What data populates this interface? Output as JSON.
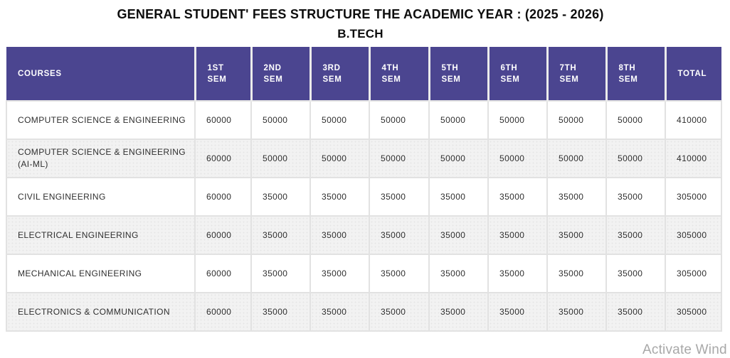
{
  "title": {
    "line1": "GENERAL STUDENT' FEES STRUCTURE THE ACADEMIC YEAR : (2025 - 2026)",
    "line2": "B.TECH"
  },
  "table": {
    "headers": [
      "COURSES",
      "1ST\nSEM",
      "2ND\nSEM",
      "3RD\nSEM",
      "4TH\nSEM",
      "5TH\nSEM",
      "6TH\nSEM",
      "7TH\nSEM",
      "8TH\nSEM",
      "TOTAL"
    ],
    "rows": [
      {
        "course": "COMPUTER SCIENCE & ENGINEERING",
        "sem_fees": [
          "60000",
          "50000",
          "50000",
          "50000",
          "50000",
          "50000",
          "50000",
          "50000"
        ],
        "total": "410000"
      },
      {
        "course": "COMPUTER SCIENCE & ENGINEERING (AI-ML)",
        "sem_fees": [
          "60000",
          "50000",
          "50000",
          "50000",
          "50000",
          "50000",
          "50000",
          "50000"
        ],
        "total": "410000"
      },
      {
        "course": "CIVIL ENGINEERING",
        "sem_fees": [
          "60000",
          "35000",
          "35000",
          "35000",
          "35000",
          "35000",
          "35000",
          "35000"
        ],
        "total": "305000"
      },
      {
        "course": "ELECTRICAL ENGINEERING",
        "sem_fees": [
          "60000",
          "35000",
          "35000",
          "35000",
          "35000",
          "35000",
          "35000",
          "35000"
        ],
        "total": "305000"
      },
      {
        "course": "MECHANICAL ENGINEERING",
        "sem_fees": [
          "60000",
          "35000",
          "35000",
          "35000",
          "35000",
          "35000",
          "35000",
          "35000"
        ],
        "total": "305000"
      },
      {
        "course": "ELECTRONICS & COMMUNICATION",
        "sem_fees": [
          "60000",
          "35000",
          "35000",
          "35000",
          "35000",
          "35000",
          "35000",
          "35000"
        ],
        "total": "305000"
      }
    ]
  },
  "colors": {
    "header_bg": "#4b4590",
    "header_text": "#ffffff",
    "alt_row_bg": "#f2f2f2",
    "grid_line": "#e2e2e2",
    "body_text": "#2f2f2f",
    "watermark_text": "#a8a8a8"
  },
  "watermark": {
    "text": "Activate Wind"
  }
}
